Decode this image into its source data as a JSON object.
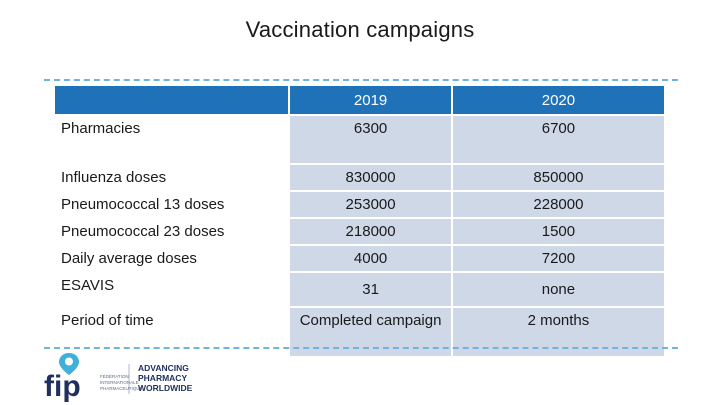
{
  "slide": {
    "title": "Vaccination campaigns"
  },
  "table": {
    "header": {
      "label": "",
      "col1": "2019",
      "col2": "2020"
    },
    "rows": [
      {
        "label": "Pharmacies",
        "v2019": "6300",
        "v2020": "6700"
      },
      {
        "label": "Influenza doses",
        "v2019": "830000",
        "v2020": "850000"
      },
      {
        "label": "Pneumococcal 13 doses",
        "v2019": "253000",
        "v2020": "228000"
      },
      {
        "label": "Pneumococcal 23 doses",
        "v2019": "218000",
        "v2020": "1500"
      },
      {
        "label": "Daily average doses",
        "v2019": "4000",
        "v2020": "7200"
      },
      {
        "label": "ESAVIS",
        "v2019": "31",
        "v2020": "none"
      },
      {
        "label": "Period of time",
        "v2019": "Completed campaign",
        "v2020": "2 months"
      }
    ]
  },
  "logo": {
    "mark": "fip",
    "small_text": [
      "FÉDÉRATION",
      "INTERNATIONALE",
      "PHARMACEUTIQUE"
    ],
    "tagline": [
      "ADVANCING",
      "PHARMACY",
      "WORLDWIDE"
    ],
    "colors": {
      "navy": "#1f2f5e",
      "cyan": "#3fb0d9"
    }
  }
}
